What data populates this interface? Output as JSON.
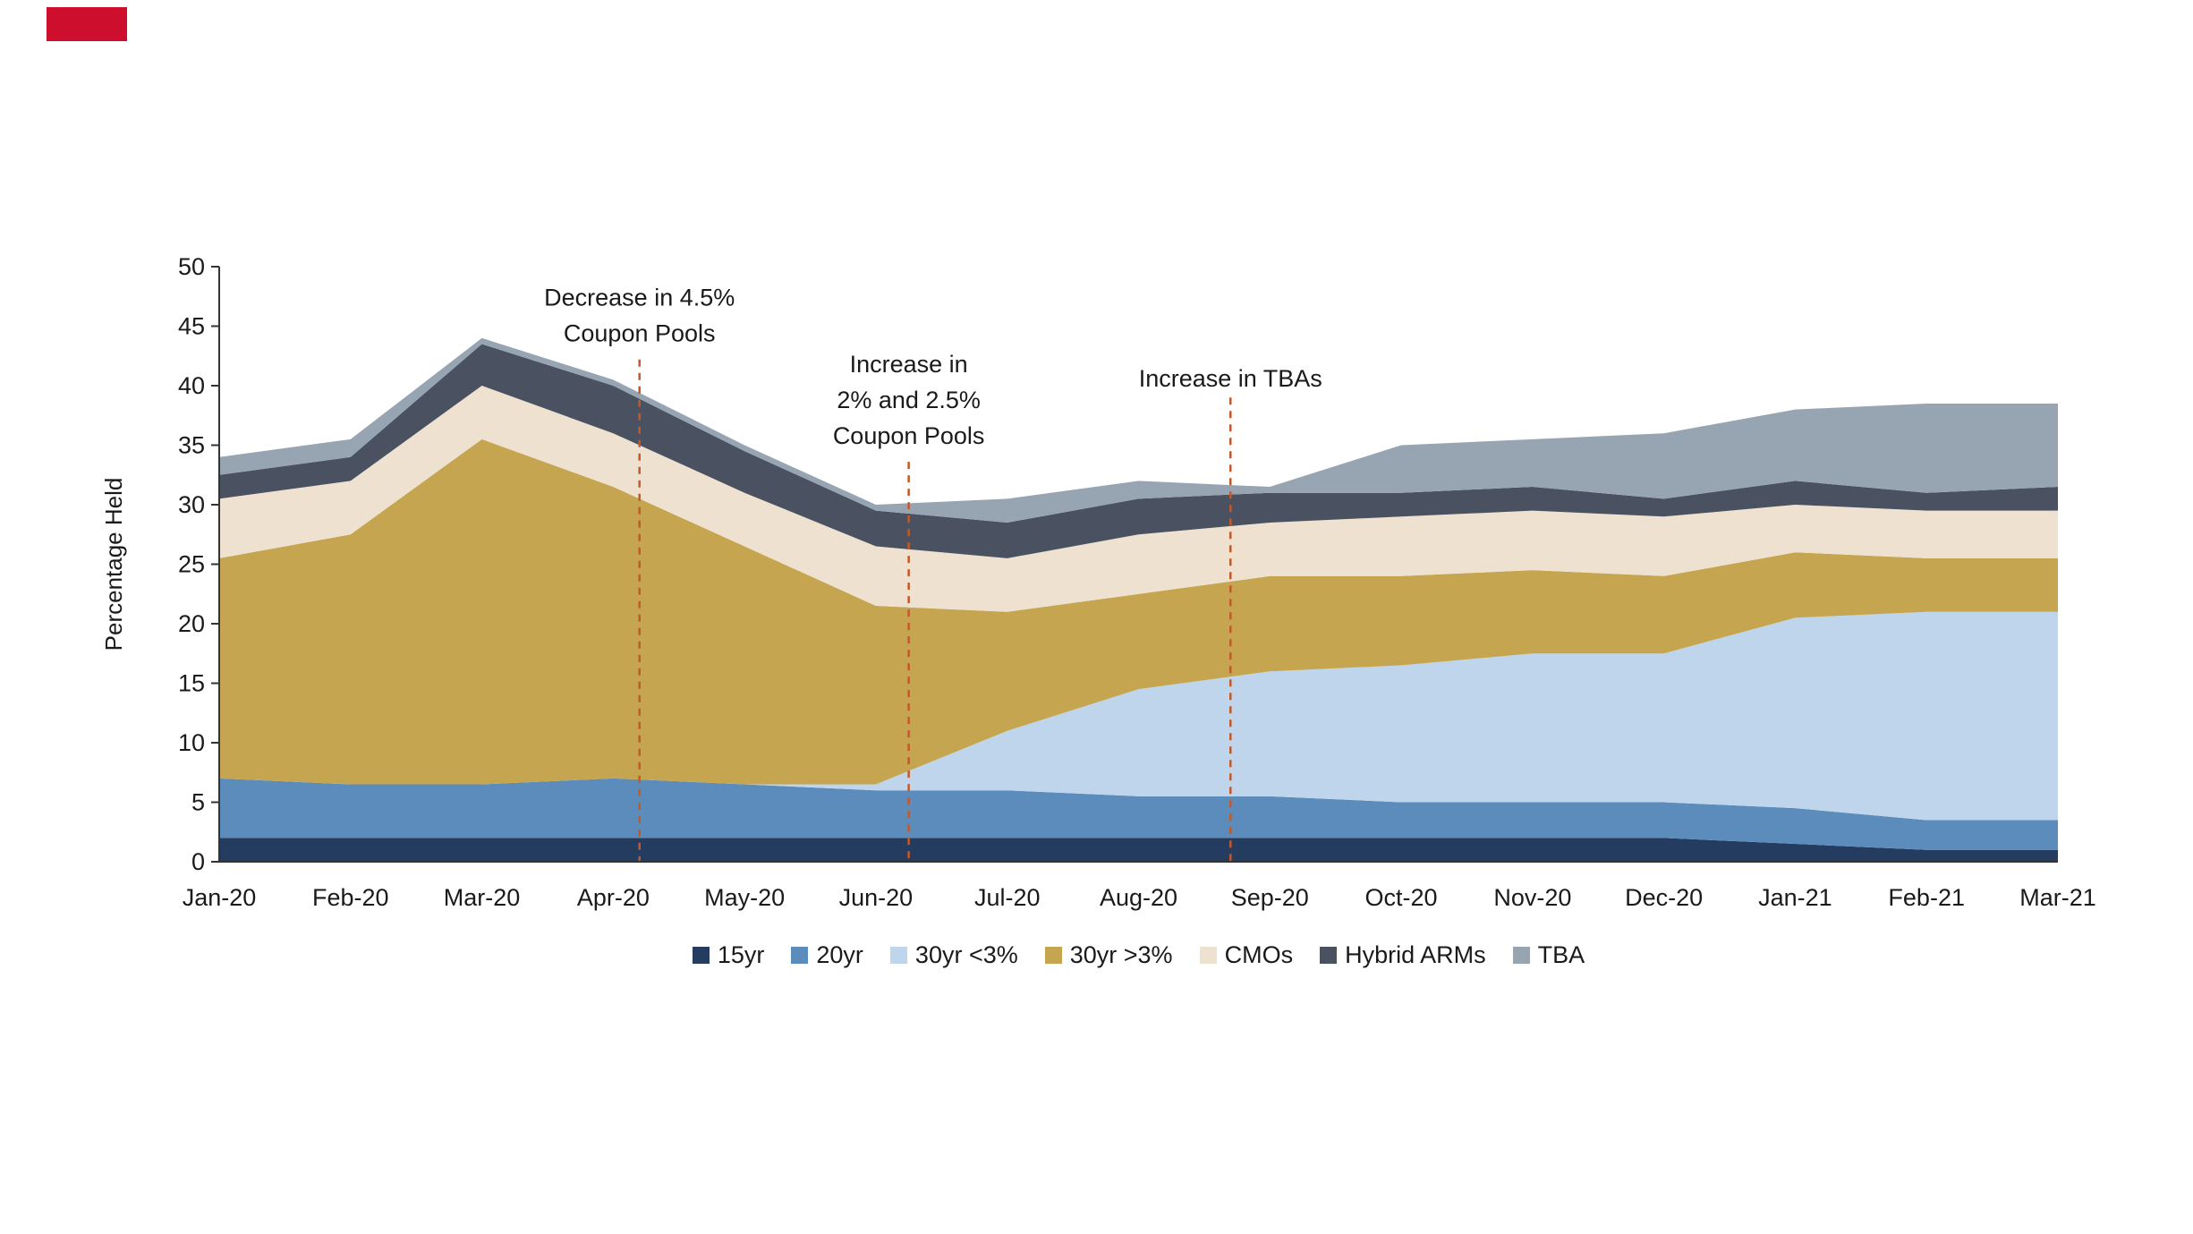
{
  "decor": {
    "red_mark_color": "#CE0E2D"
  },
  "chart_data": {
    "type": "area",
    "stacked": true,
    "title": "",
    "ylabel": "Percentage Held",
    "xlabel": "",
    "ylim": [
      0,
      50
    ],
    "ytick_step": 5,
    "grid": false,
    "legend_position": "bottom",
    "axis_color": "#333333",
    "text_color": "#1a1a1a",
    "annotation_line_color": "#C2592A",
    "categories": [
      "Jan-20",
      "Feb-20",
      "Mar-20",
      "Apr-20",
      "May-20",
      "Jun-20",
      "Jul-20",
      "Aug-20",
      "Sep-20",
      "Oct-20",
      "Nov-20",
      "Dec-20",
      "Jan-21",
      "Feb-21",
      "Mar-21"
    ],
    "series": [
      {
        "name": "15yr",
        "color": "#243C5F",
        "values": [
          2,
          2,
          2,
          2,
          2,
          2,
          2,
          2,
          2,
          2,
          2,
          2,
          1.5,
          1,
          1
        ]
      },
      {
        "name": "20yr",
        "color": "#5C8CBC",
        "values": [
          5,
          4.5,
          4.5,
          5,
          4.5,
          4,
          4,
          3.5,
          3.5,
          3,
          3,
          3,
          3,
          2.5,
          2.5
        ]
      },
      {
        "name": "30yr <3%",
        "color": "#BFD5EC",
        "values": [
          0,
          0,
          0,
          0,
          0,
          0.5,
          5,
          9,
          10.5,
          11.5,
          12.5,
          12.5,
          16,
          17.5,
          17.5
        ]
      },
      {
        "name": "30yr >3%",
        "color": "#C5A550",
        "values": [
          18.5,
          21,
          29,
          24.5,
          20,
          15,
          10,
          8,
          8,
          7.5,
          7,
          6.5,
          5.5,
          4.5,
          4.5
        ]
      },
      {
        "name": "CMOs",
        "color": "#EFE1D0",
        "values": [
          5,
          4.5,
          4.5,
          4.5,
          4.5,
          5,
          4.5,
          5,
          4.5,
          5,
          5,
          5,
          4,
          4,
          4
        ]
      },
      {
        "name": "Hybrid ARMs",
        "color": "#4A5262",
        "values": [
          2,
          2,
          3.5,
          4,
          3.5,
          3,
          3,
          3,
          2.5,
          2,
          2,
          1.5,
          2,
          1.5,
          2
        ]
      },
      {
        "name": "TBA",
        "color": "#97A5B3",
        "values": [
          1.5,
          1.5,
          0.5,
          0.5,
          0.5,
          0.5,
          2,
          1.5,
          0.5,
          4,
          4,
          5.5,
          6,
          7.5,
          7
        ]
      }
    ],
    "annotations": [
      {
        "lines": [
          "Decrease in 4.5%",
          "Coupon Pools"
        ],
        "x_index": 3.2,
        "text_top_value": 47.4,
        "line_top_value": 42.2
      },
      {
        "lines": [
          "Increase in",
          "2% and 2.5%",
          "Coupon Pools"
        ],
        "x_index": 5.25,
        "text_top_value": 41.8,
        "line_top_value": 33.6
      },
      {
        "lines": [
          "Increase in TBAs"
        ],
        "x_index": 7.7,
        "text_top_value": 40.6,
        "line_top_value": 39.0
      }
    ]
  }
}
